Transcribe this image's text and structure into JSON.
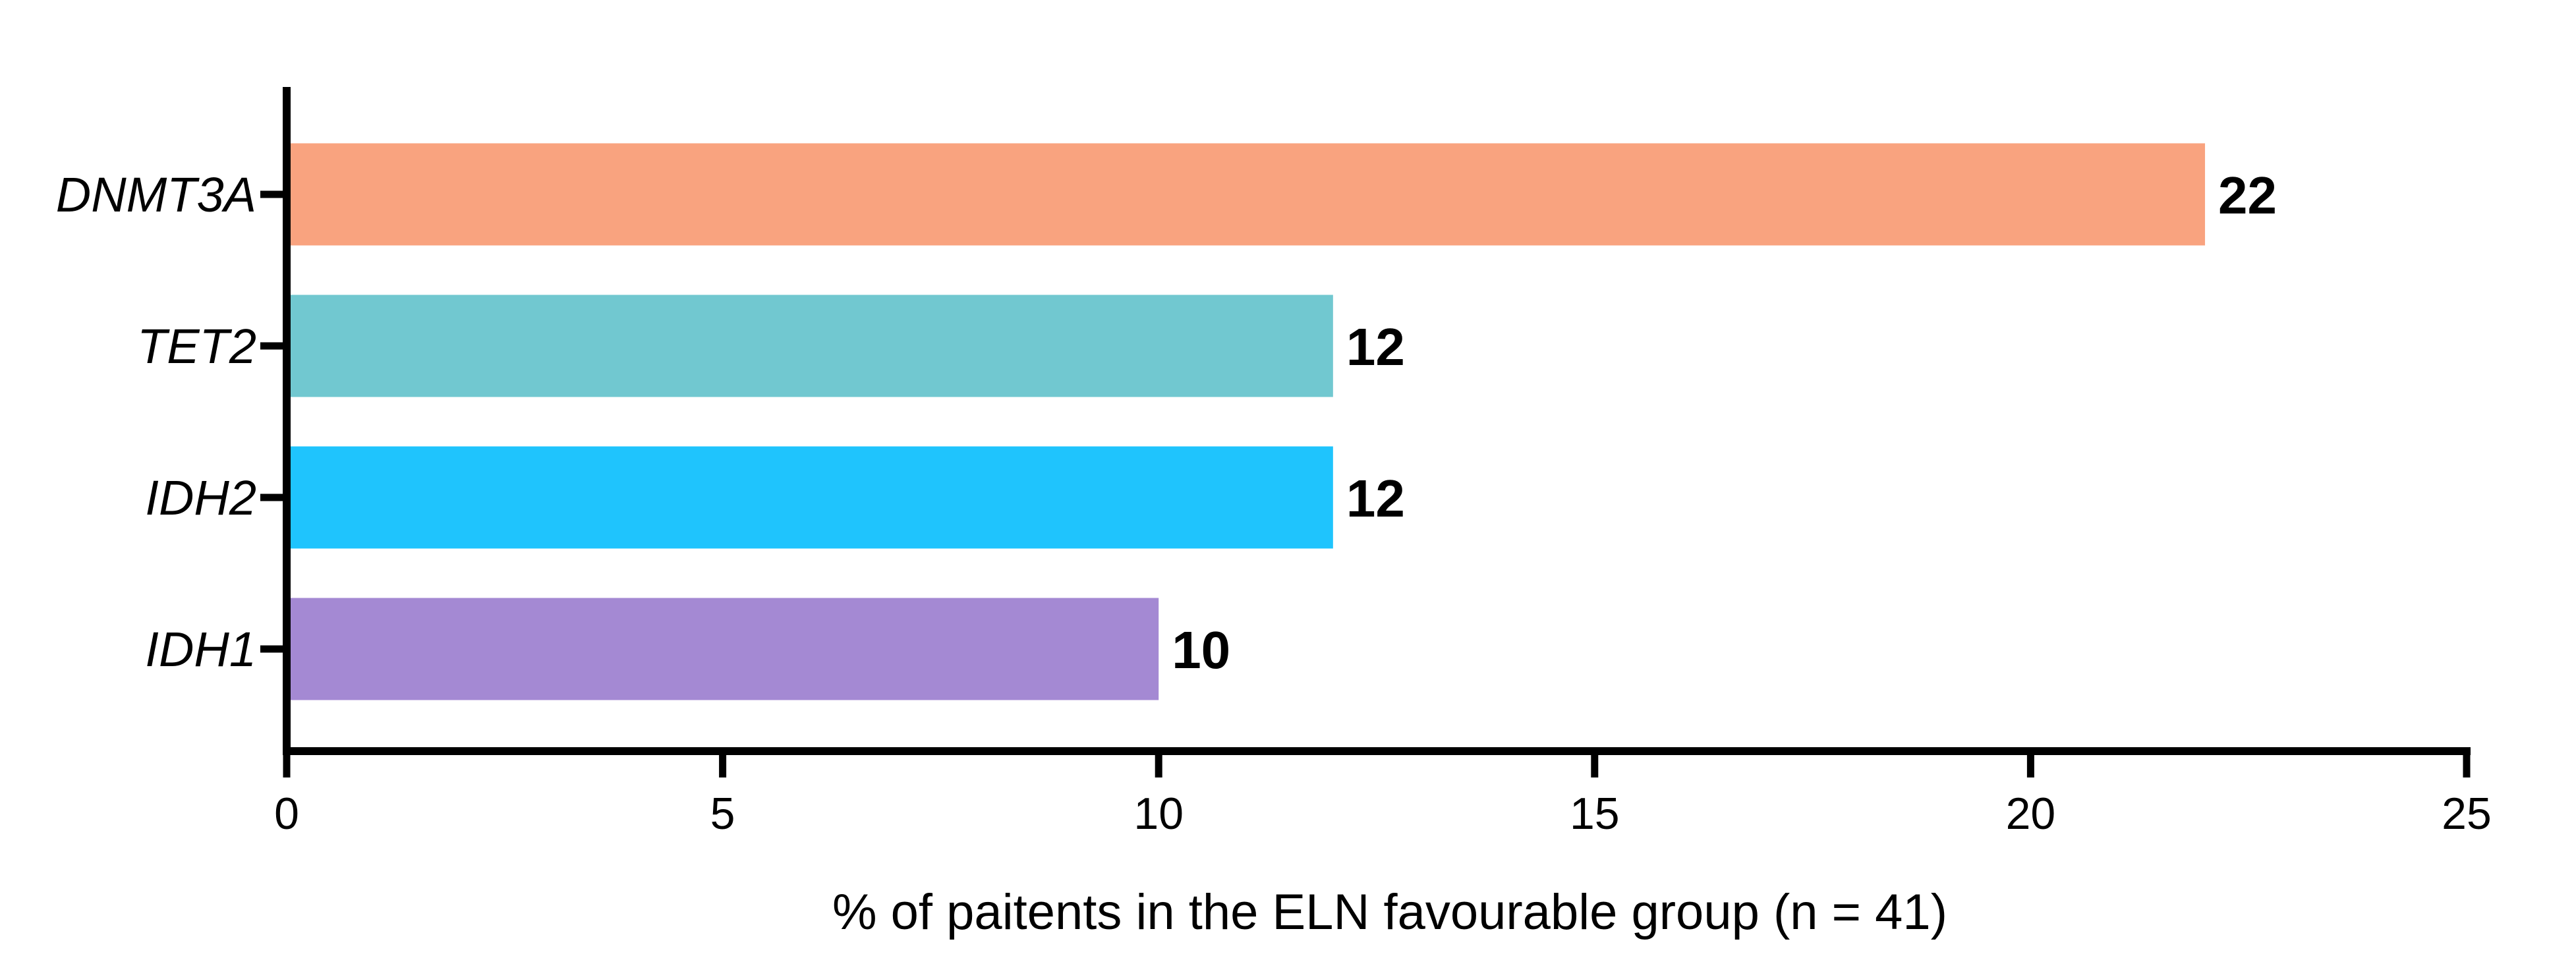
{
  "chart_data": {
    "type": "bar",
    "orientation": "horizontal",
    "categories": [
      "DNMT3A",
      "TET2",
      "IDH2",
      "IDH1"
    ],
    "values": [
      22,
      12,
      12,
      10
    ],
    "data_labels": [
      "22",
      "12",
      "12",
      "10"
    ],
    "colors": [
      "#F9A37F",
      "#71C8D0",
      "#1FC4FD",
      "#A489D3"
    ],
    "title": "",
    "xlabel": "% of paitents in the ELN favourable group (n = 41)",
    "ylabel": "",
    "xlim": [
      0,
      25
    ],
    "xticks": [
      0,
      5,
      10,
      15,
      20,
      25
    ],
    "xtick_labels": [
      "0",
      "5",
      "10",
      "15",
      "20",
      "25"
    ],
    "grid": false,
    "legend": "none"
  }
}
